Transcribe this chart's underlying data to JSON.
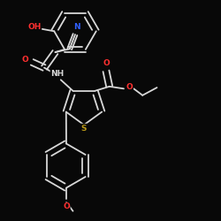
{
  "bg_color": "#080808",
  "bond_color": "#d8d8d8",
  "bond_width": 1.3,
  "font_size_atom": 6.5,
  "atoms": {
    "O_red": "#ff3030",
    "N_blue": "#3060ff",
    "S_yellow": "#b89818",
    "C_white": "#d8d8d8"
  },
  "layout": {
    "xlim": [
      0,
      10
    ],
    "ylim": [
      0,
      10
    ]
  }
}
